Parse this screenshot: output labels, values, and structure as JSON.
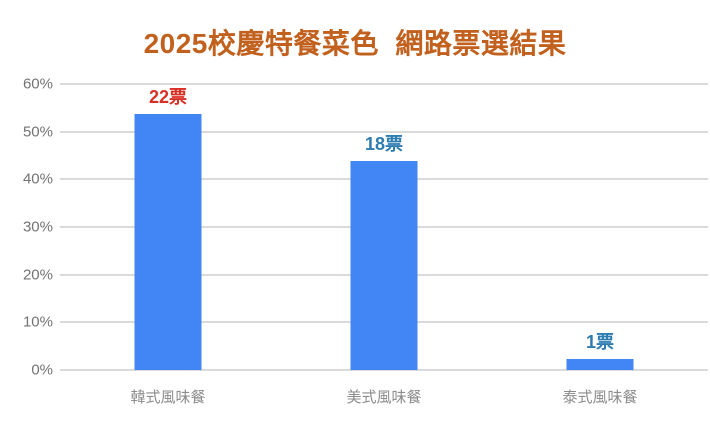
{
  "chart_data": {
    "type": "bar",
    "title": "2025校慶特餐菜色  網路票選結果",
    "categories": [
      "韓式風味餐",
      "美式風味餐",
      "泰式風味餐"
    ],
    "values_percent": [
      53.7,
      43.9,
      2.4
    ],
    "votes": [
      22,
      18,
      1
    ],
    "bar_labels": [
      "22票",
      "18票",
      "1票"
    ],
    "bar_label_colors": [
      "#D93025",
      "#2E7CB0",
      "#2E7CB0"
    ],
    "bar_color": "#4285F4",
    "xlabel": "",
    "ylabel": "",
    "ylim": [
      0,
      60
    ],
    "ytick_step": 10,
    "yticks": [
      "0%",
      "10%",
      "20%",
      "30%",
      "40%",
      "50%",
      "60%"
    ],
    "grid": true,
    "legend": "none",
    "colors": {
      "title": "#C2611E",
      "grid": "#DADADA",
      "ytick_text": "#737373",
      "xtick_text": "#8C8C8C",
      "background": "#FFFFFF"
    }
  }
}
